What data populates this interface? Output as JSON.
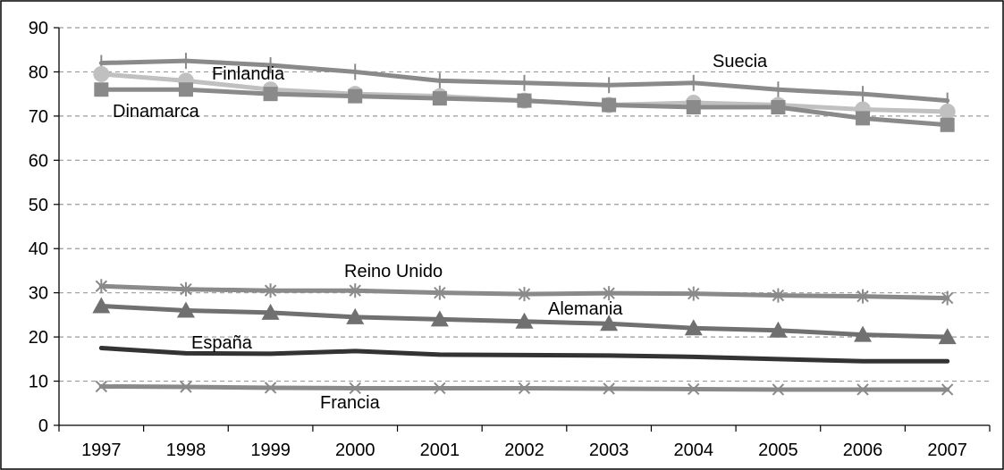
{
  "chart_data": {
    "type": "line",
    "title": "",
    "xlabel": "",
    "ylabel": "",
    "categories": [
      "1997",
      "1998",
      "1999",
      "2000",
      "2001",
      "2002",
      "2003",
      "2004",
      "2005",
      "2006",
      "2007"
    ],
    "ylim": [
      0,
      90
    ],
    "yticks": [
      "0",
      "10",
      "20",
      "30",
      "40",
      "50",
      "60",
      "70",
      "80",
      "90"
    ],
    "grid": true,
    "series": [
      {
        "name": "Suecia",
        "key": "suecia",
        "values": [
          82,
          82.5,
          81.5,
          80,
          78,
          77.5,
          77,
          77.5,
          76,
          75,
          73.5
        ],
        "color": "#8a8a8a",
        "marker": "plus"
      },
      {
        "name": "Finlandia",
        "key": "finlandia",
        "values": [
          79.5,
          78,
          76,
          75,
          74.5,
          73.5,
          72.5,
          73,
          72.5,
          71.5,
          71
        ],
        "color": "#c0c0c0",
        "marker": "circle"
      },
      {
        "name": "Dinamarca",
        "key": "dinamarca",
        "values": [
          76,
          76,
          75,
          74.5,
          74,
          73.5,
          72.5,
          72,
          72,
          69.5,
          68
        ],
        "color": "#8a8a8a",
        "marker": "square"
      },
      {
        "name": "Reino Unido",
        "key": "reino_unido",
        "values": [
          31.5,
          30.8,
          30.5,
          30.5,
          30,
          29.7,
          29.9,
          29.8,
          29.4,
          29.2,
          28.8
        ],
        "color": "#8a8a8a",
        "marker": "star"
      },
      {
        "name": "Alemania",
        "key": "alemania",
        "values": [
          27,
          26,
          25.5,
          24.5,
          24,
          23.5,
          23,
          22,
          21.5,
          20.5,
          20
        ],
        "color": "#707070",
        "marker": "triangle"
      },
      {
        "name": "España",
        "key": "espana",
        "values": [
          17.5,
          16.3,
          16.2,
          16.8,
          16,
          15.9,
          15.8,
          15.5,
          15,
          14.5,
          14.5
        ],
        "color": "#333333",
        "marker": "none"
      },
      {
        "name": "Francia",
        "key": "francia",
        "values": [
          8.8,
          8.7,
          8.5,
          8.4,
          8.4,
          8.4,
          8.3,
          8.2,
          8.1,
          8.1,
          8.1
        ],
        "color": "#8a8a8a",
        "marker": "x"
      }
    ]
  }
}
